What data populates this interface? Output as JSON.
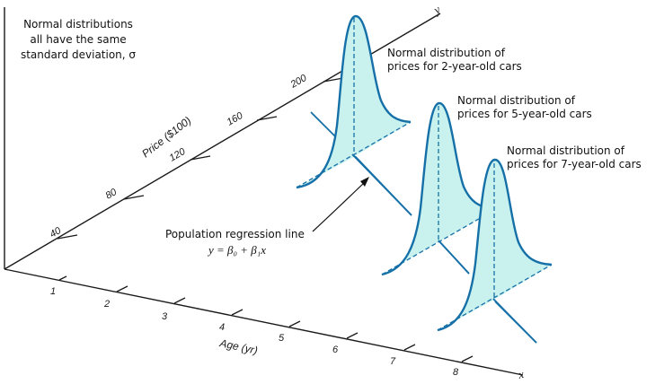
{
  "annotations": {
    "sd_note": [
      "Normal distributions",
      "all have the same",
      "standard deviation, σ"
    ],
    "dist_2yr": [
      "Normal distribution of",
      "prices for 2-year-old cars"
    ],
    "dist_5yr": [
      "Normal distribution of",
      "prices for 5-year-old cars"
    ],
    "dist_7yr": [
      "Normal distribution of",
      "prices for 7-year-old cars"
    ],
    "regression_label": "Population regression line",
    "regression_formula": "y = β₀ + β₁x"
  },
  "x_axis": {
    "title": "Age (yr)",
    "letter": "x",
    "ticks": [
      "1",
      "2",
      "3",
      "4",
      "5",
      "6",
      "7",
      "8"
    ]
  },
  "y_axis": {
    "title": "Price ($100)",
    "letter": "y",
    "ticks": [
      "40",
      "80",
      "120",
      "160",
      "200"
    ]
  },
  "distributions": [
    {
      "age": 2,
      "label": "Normal distribution of prices for 2-year-old cars"
    },
    {
      "age": 5,
      "label": "Normal distribution of prices for 5-year-old cars"
    },
    {
      "age": 7,
      "label": "Normal distribution of prices for 7-year-old cars"
    }
  ],
  "colors": {
    "curve": "#1670a8",
    "fill": "#c9f2ee",
    "axis": "#1a1a1a"
  }
}
